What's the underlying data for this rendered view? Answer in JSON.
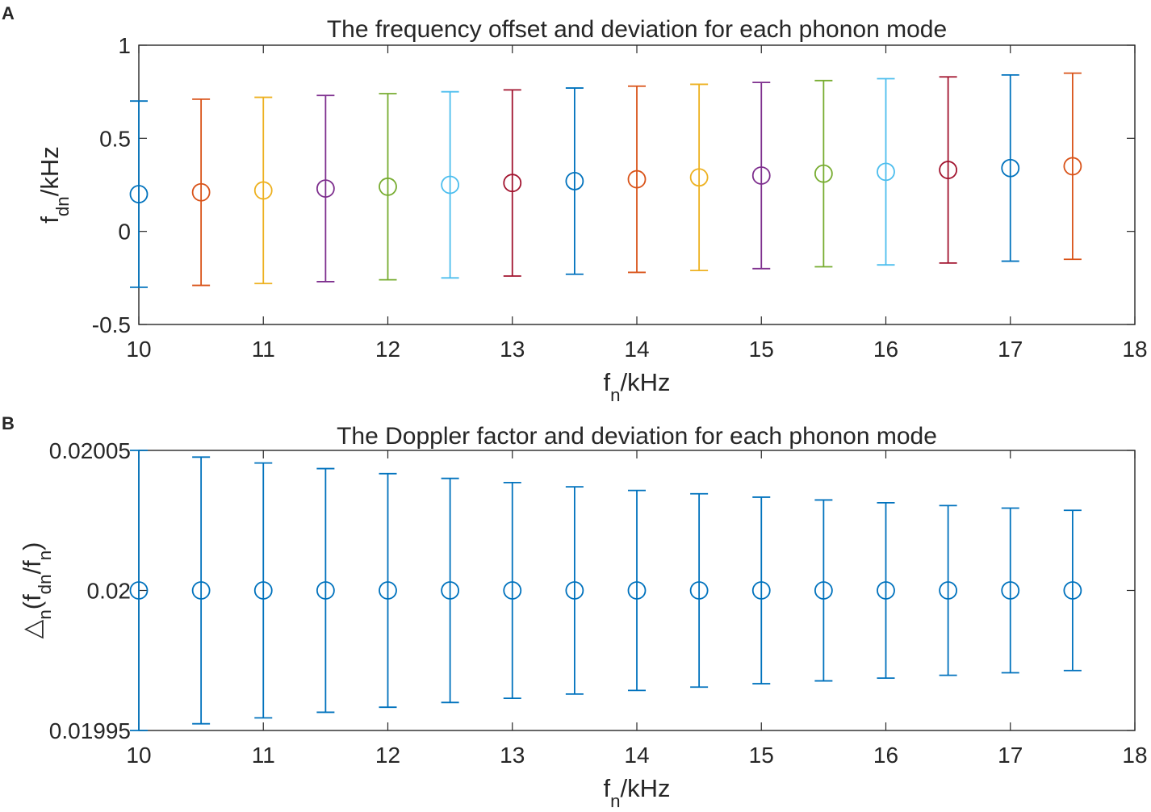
{
  "chart_data": [
    {
      "panel": "A",
      "type": "scatter",
      "subtype": "errorbar",
      "title": "The frequency offset and deviation for each phonon mode",
      "xlabel": {
        "main": "f",
        "sub": "n",
        "rest": "/kHz"
      },
      "ylabel": {
        "main": "f",
        "sub": "dn",
        "rest": "/kHz"
      },
      "xlim": [
        10,
        18
      ],
      "ylim": [
        -0.5,
        1
      ],
      "xticks": [
        "10",
        "11",
        "12",
        "13",
        "14",
        "15",
        "16",
        "17",
        "18"
      ],
      "yticks": [
        "-0.5",
        "0",
        "0.5",
        "1"
      ],
      "ytick_values": [
        -0.5,
        0,
        0.5,
        1
      ],
      "grid": false,
      "marker": "circle",
      "x": [
        10,
        10.5,
        11,
        11.5,
        12,
        12.5,
        13,
        13.5,
        14,
        14.5,
        15,
        15.5,
        16,
        16.5,
        17,
        17.5
      ],
      "y": [
        0.2,
        0.21,
        0.22,
        0.23,
        0.24,
        0.25,
        0.26,
        0.27,
        0.28,
        0.29,
        0.3,
        0.31,
        0.32,
        0.33,
        0.34,
        0.35
      ],
      "yerr": [
        0.5,
        0.5,
        0.5,
        0.5,
        0.5,
        0.5,
        0.5,
        0.5,
        0.5,
        0.5,
        0.5,
        0.5,
        0.5,
        0.5,
        0.5,
        0.5
      ],
      "colors": [
        "#0072BD",
        "#D95319",
        "#EDB120",
        "#7E2F8E",
        "#77AC30",
        "#4DBEEE",
        "#A2142F",
        "#0072BD",
        "#D95319",
        "#EDB120",
        "#7E2F8E",
        "#77AC30",
        "#4DBEEE",
        "#A2142F",
        "#0072BD",
        "#D95319"
      ]
    },
    {
      "panel": "B",
      "type": "scatter",
      "subtype": "errorbar",
      "title": "The Doppler factor and deviation for each phonon mode",
      "xlabel": {
        "main": "f",
        "sub": "n",
        "rest": "/kHz"
      },
      "ylabel": {
        "parts": [
          "△",
          "n",
          "(f",
          "dn",
          "/f",
          "n",
          ")"
        ]
      },
      "xlim": [
        10,
        18
      ],
      "ylim": [
        0.01995,
        0.02005
      ],
      "xticks": [
        "10",
        "11",
        "12",
        "13",
        "14",
        "15",
        "16",
        "17",
        "18"
      ],
      "yticks": [
        "0.01995",
        "0.02",
        "0.02005"
      ],
      "ytick_values": [
        0.01995,
        0.02,
        0.02005
      ],
      "grid": false,
      "marker": "circle",
      "x": [
        10,
        10.5,
        11,
        11.5,
        12,
        12.5,
        13,
        13.5,
        14,
        14.5,
        15,
        15.5,
        16,
        16.5,
        17,
        17.5
      ],
      "y": [
        0.02,
        0.02,
        0.02,
        0.02,
        0.02,
        0.02,
        0.02,
        0.02,
        0.02,
        0.02,
        0.02,
        0.02,
        0.02,
        0.02,
        0.02,
        0.02
      ],
      "yerr": [
        5e-05,
        4.76e-05,
        4.55e-05,
        4.35e-05,
        4.17e-05,
        4e-05,
        3.85e-05,
        3.7e-05,
        3.57e-05,
        3.45e-05,
        3.33e-05,
        3.23e-05,
        3.13e-05,
        3.03e-05,
        2.94e-05,
        2.86e-05
      ],
      "colors": [
        "#0072BD"
      ]
    }
  ]
}
